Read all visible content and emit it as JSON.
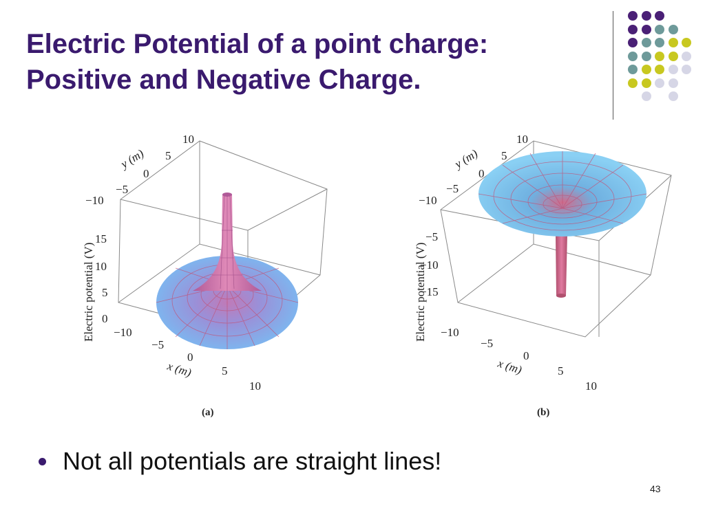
{
  "slide": {
    "title_lines": [
      "Electric Potential of a point charge:",
      "Positive and Negative Charge."
    ],
    "bullet": "Not all potentials are straight lines!",
    "page_number": "43"
  },
  "decor": {
    "dot_grid": [
      [
        "#4a2076",
        "#4a2076",
        "#4a2076",
        "",
        ""
      ],
      [
        "#4a2076",
        "#4a2076",
        "#6e9a9a",
        "#6e9a9a",
        ""
      ],
      [
        "#4a2076",
        "#6e9a9a",
        "#6e9a9a",
        "#c8c820",
        "#c8c820"
      ],
      [
        "#6e9a9a",
        "#6e9a9a",
        "#c8c820",
        "#c8c820",
        "#d6d6e6"
      ],
      [
        "#6e9a9a",
        "#c8c820",
        "#c8c820",
        "#d6d6e6",
        "#d6d6e6"
      ],
      [
        "#c8c820",
        "#c8c820",
        "#d6d6e6",
        "#d6d6e6",
        ""
      ],
      [
        "",
        "#d6d6e6",
        "",
        "#d6d6e6",
        ""
      ]
    ]
  },
  "figure": {
    "panel_a": {
      "caption": "(a)",
      "y_axis_label": "y (m)",
      "y_ticks": [
        "10",
        "5",
        "0",
        "−5",
        "−10"
      ],
      "v_axis_label": "Electric potential (V)",
      "v_ticks": [
        "15",
        "10",
        "5",
        "0"
      ],
      "x_axis_label": "x (m)",
      "x_ticks": [
        "−10",
        "−5",
        "0",
        "5",
        "10"
      ]
    },
    "panel_b": {
      "caption": "(b)",
      "y_axis_label": "y (m)",
      "y_ticks": [
        "10",
        "5",
        "0",
        "−5",
        "−10"
      ],
      "v_axis_label": "Electric potential (V)",
      "v_ticks": [
        "−5",
        "−10",
        "−15"
      ],
      "x_axis_label": "x (m)",
      "x_ticks": [
        "−10",
        "−5",
        "0",
        "5",
        "10"
      ]
    }
  }
}
